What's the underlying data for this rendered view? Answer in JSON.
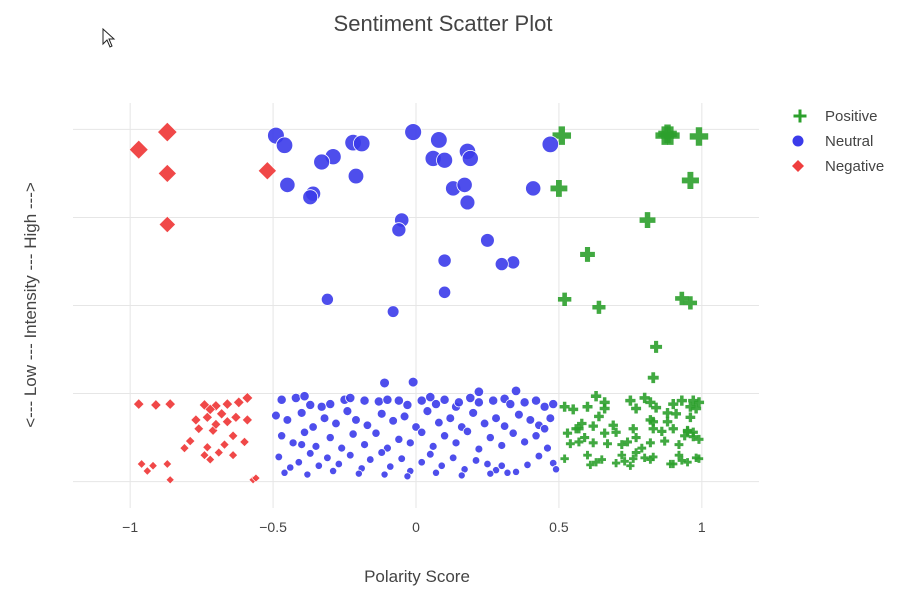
{
  "chart_data": {
    "type": "scatter",
    "title": "Sentiment Scatter Plot",
    "xlabel": "Polarity Score",
    "ylabel": "<--- Low --- Intensity --- High --->",
    "xlim": [
      -1.2,
      1.2
    ],
    "ylim": [
      -0.3,
      4.3
    ],
    "x_ticks": [
      -1,
      -0.5,
      0,
      0.5,
      1
    ],
    "x_tick_labels": [
      "−1",
      "−0.5",
      "0",
      "0.5",
      "1"
    ],
    "y_gridlines": [
      0,
      1,
      2,
      3,
      4
    ],
    "grid": true,
    "legend_position": "top-right",
    "series": [
      {
        "name": "Positive",
        "marker": "cross",
        "color": "#2ca02c",
        "points": [
          [
            0.51,
            3.93
          ],
          [
            0.88,
            3.95
          ],
          [
            0.89,
            3.93
          ],
          [
            0.87,
            3.93
          ],
          [
            0.99,
            3.92
          ],
          [
            0.96,
            3.42
          ],
          [
            0.5,
            3.33
          ],
          [
            0.81,
            2.97
          ],
          [
            0.6,
            2.58
          ],
          [
            0.52,
            2.07
          ],
          [
            0.64,
            1.98
          ],
          [
            0.93,
            2.08
          ],
          [
            0.96,
            2.03
          ],
          [
            0.84,
            1.53
          ],
          [
            0.83,
            1.18
          ],
          [
            0.52,
            0.85
          ],
          [
            0.55,
            0.82
          ],
          [
            0.53,
            0.55
          ],
          [
            0.56,
            0.6
          ],
          [
            0.58,
            0.66
          ],
          [
            0.52,
            0.26
          ],
          [
            0.63,
            0.97
          ],
          [
            0.6,
            0.85
          ],
          [
            0.66,
            0.83
          ],
          [
            0.66,
            0.9
          ],
          [
            0.64,
            0.74
          ],
          [
            0.75,
            0.92
          ],
          [
            0.77,
            0.83
          ],
          [
            0.8,
            0.95
          ],
          [
            0.82,
            0.9
          ],
          [
            0.82,
            0.7
          ],
          [
            0.83,
            0.68
          ],
          [
            0.88,
            0.78
          ],
          [
            0.9,
            0.88
          ],
          [
            0.93,
            0.92
          ],
          [
            0.97,
            0.92
          ],
          [
            0.99,
            0.9
          ],
          [
            0.98,
            0.83
          ],
          [
            0.96,
            0.85
          ],
          [
            0.88,
            0.68
          ],
          [
            0.86,
            0.57
          ],
          [
            0.83,
            0.6
          ],
          [
            0.9,
            0.6
          ],
          [
            0.95,
            0.57
          ],
          [
            0.97,
            0.56
          ],
          [
            0.97,
            0.51
          ],
          [
            0.94,
            0.52
          ],
          [
            0.77,
            0.5
          ],
          [
            0.76,
            0.6
          ],
          [
            0.7,
            0.56
          ],
          [
            0.66,
            0.55
          ],
          [
            0.62,
            0.63
          ],
          [
            0.59,
            0.5
          ],
          [
            0.57,
            0.45
          ],
          [
            0.54,
            0.43
          ],
          [
            0.6,
            0.3
          ],
          [
            0.61,
            0.19
          ],
          [
            0.63,
            0.22
          ],
          [
            0.65,
            0.25
          ],
          [
            0.72,
            0.3
          ],
          [
            0.7,
            0.21
          ],
          [
            0.73,
            0.23
          ],
          [
            0.76,
            0.26
          ],
          [
            0.77,
            0.33
          ],
          [
            0.79,
            0.38
          ],
          [
            0.8,
            0.27
          ],
          [
            0.82,
            0.25
          ],
          [
            0.83,
            0.28
          ],
          [
            0.9,
            0.2
          ],
          [
            0.93,
            0.24
          ],
          [
            0.95,
            0.22
          ],
          [
            0.98,
            0.27
          ],
          [
            0.99,
            0.26
          ],
          [
            0.92,
            0.3
          ],
          [
            0.75,
            0.18
          ],
          [
            0.67,
            0.43
          ],
          [
            0.72,
            0.42
          ],
          [
            0.74,
            0.45
          ],
          [
            0.62,
            0.44
          ],
          [
            0.57,
            0.6
          ],
          [
            0.69,
            0.64
          ],
          [
            0.82,
            0.44
          ],
          [
            0.87,
            0.46
          ],
          [
            0.92,
            0.42
          ],
          [
            0.99,
            0.48
          ],
          [
            0.95,
            0.58
          ],
          [
            0.84,
            0.84
          ],
          [
            0.91,
            0.77
          ],
          [
            0.96,
            0.73
          ],
          [
            0.89,
            0.2
          ]
        ]
      },
      {
        "name": "Neutral",
        "marker": "circle",
        "color": "#3b3bea",
        "points": [
          [
            -0.49,
            3.93
          ],
          [
            -0.46,
            3.82
          ],
          [
            -0.22,
            3.85
          ],
          [
            -0.19,
            3.84
          ],
          [
            -0.01,
            3.97
          ],
          [
            0.08,
            3.88
          ],
          [
            0.47,
            3.83
          ],
          [
            0.18,
            3.75
          ],
          [
            0.19,
            3.67
          ],
          [
            0.06,
            3.67
          ],
          [
            0.1,
            3.65
          ],
          [
            -0.29,
            3.69
          ],
          [
            -0.33,
            3.63
          ],
          [
            -0.21,
            3.47
          ],
          [
            -0.45,
            3.37
          ],
          [
            -0.36,
            3.27
          ],
          [
            -0.37,
            3.23
          ],
          [
            0.13,
            3.33
          ],
          [
            0.17,
            3.37
          ],
          [
            0.18,
            3.17
          ],
          [
            0.41,
            3.33
          ],
          [
            -0.05,
            2.97
          ],
          [
            -0.06,
            2.86
          ],
          [
            0.25,
            2.74
          ],
          [
            0.1,
            2.51
          ],
          [
            0.34,
            2.49
          ],
          [
            0.3,
            2.47
          ],
          [
            -0.31,
            2.07
          ],
          [
            0.1,
            2.15
          ],
          [
            -0.08,
            1.93
          ],
          [
            -0.11,
            1.12
          ],
          [
            0.35,
            1.03
          ],
          [
            -0.47,
            0.93
          ],
          [
            -0.42,
            0.95
          ],
          [
            -0.39,
            0.97
          ],
          [
            -0.37,
            0.87
          ],
          [
            -0.33,
            0.85
          ],
          [
            -0.3,
            0.88
          ],
          [
            -0.25,
            0.93
          ],
          [
            -0.23,
            0.95
          ],
          [
            -0.18,
            0.92
          ],
          [
            -0.13,
            0.91
          ],
          [
            -0.1,
            0.93
          ],
          [
            -0.06,
            0.92
          ],
          [
            -0.03,
            0.87
          ],
          [
            0.02,
            0.92
          ],
          [
            0.05,
            0.96
          ],
          [
            0.07,
            0.88
          ],
          [
            0.1,
            0.93
          ],
          [
            0.14,
            0.85
          ],
          [
            0.15,
            0.9
          ],
          [
            0.19,
            0.95
          ],
          [
            0.22,
            0.9
          ],
          [
            0.27,
            0.92
          ],
          [
            0.31,
            0.94
          ],
          [
            0.33,
            0.88
          ],
          [
            0.38,
            0.9
          ],
          [
            0.42,
            0.92
          ],
          [
            0.45,
            0.85
          ],
          [
            0.48,
            0.88
          ],
          [
            -0.49,
            0.75
          ],
          [
            -0.45,
            0.7
          ],
          [
            -0.4,
            0.78
          ],
          [
            -0.36,
            0.62
          ],
          [
            -0.32,
            0.72
          ],
          [
            -0.28,
            0.66
          ],
          [
            -0.24,
            0.8
          ],
          [
            -0.21,
            0.7
          ],
          [
            -0.17,
            0.64
          ],
          [
            -0.12,
            0.77
          ],
          [
            -0.08,
            0.69
          ],
          [
            -0.04,
            0.74
          ],
          [
            0.0,
            0.62
          ],
          [
            0.04,
            0.8
          ],
          [
            0.08,
            0.67
          ],
          [
            0.12,
            0.72
          ],
          [
            0.16,
            0.62
          ],
          [
            0.2,
            0.78
          ],
          [
            0.24,
            0.66
          ],
          [
            0.28,
            0.72
          ],
          [
            0.31,
            0.63
          ],
          [
            0.36,
            0.76
          ],
          [
            0.4,
            0.7
          ],
          [
            0.43,
            0.64
          ],
          [
            0.47,
            0.72
          ],
          [
            -0.47,
            0.52
          ],
          [
            -0.43,
            0.44
          ],
          [
            -0.39,
            0.56
          ],
          [
            -0.35,
            0.4
          ],
          [
            -0.3,
            0.5
          ],
          [
            -0.26,
            0.38
          ],
          [
            -0.22,
            0.54
          ],
          [
            -0.18,
            0.42
          ],
          [
            -0.14,
            0.55
          ],
          [
            -0.1,
            0.38
          ],
          [
            -0.06,
            0.48
          ],
          [
            -0.02,
            0.44
          ],
          [
            0.02,
            0.56
          ],
          [
            0.06,
            0.4
          ],
          [
            0.1,
            0.52
          ],
          [
            0.14,
            0.44
          ],
          [
            0.18,
            0.57
          ],
          [
            0.22,
            0.37
          ],
          [
            0.26,
            0.5
          ],
          [
            0.3,
            0.41
          ],
          [
            0.34,
            0.55
          ],
          [
            0.38,
            0.45
          ],
          [
            0.42,
            0.52
          ],
          [
            0.46,
            0.38
          ],
          [
            -0.48,
            0.28
          ],
          [
            -0.44,
            0.16
          ],
          [
            -0.41,
            0.22
          ],
          [
            -0.37,
            0.32
          ],
          [
            -0.34,
            0.18
          ],
          [
            -0.31,
            0.27
          ],
          [
            -0.27,
            0.2
          ],
          [
            -0.23,
            0.3
          ],
          [
            -0.19,
            0.15
          ],
          [
            -0.16,
            0.25
          ],
          [
            -0.12,
            0.33
          ],
          [
            -0.09,
            0.17
          ],
          [
            -0.05,
            0.26
          ],
          [
            -0.02,
            0.12
          ],
          [
            0.02,
            0.22
          ],
          [
            0.05,
            0.31
          ],
          [
            0.09,
            0.18
          ],
          [
            0.13,
            0.27
          ],
          [
            0.17,
            0.14
          ],
          [
            0.21,
            0.24
          ],
          [
            0.25,
            0.2
          ],
          [
            0.28,
            0.13
          ],
          [
            0.32,
            0.1
          ],
          [
            0.35,
            0.11
          ],
          [
            0.39,
            0.19
          ],
          [
            0.43,
            0.29
          ],
          [
            0.48,
            0.21
          ],
          [
            0.49,
            0.14
          ],
          [
            -0.46,
            0.1
          ],
          [
            -0.38,
            0.08
          ],
          [
            -0.29,
            0.12
          ],
          [
            -0.2,
            0.09
          ],
          [
            -0.11,
            0.08
          ],
          [
            -0.03,
            0.06
          ],
          [
            0.07,
            0.1
          ],
          [
            0.16,
            0.07
          ],
          [
            0.26,
            0.09
          ],
          [
            0.3,
            0.18
          ],
          [
            -0.01,
            1.13
          ],
          [
            0.22,
            1.02
          ],
          [
            -0.4,
            0.42
          ],
          [
            0.45,
            0.6
          ]
        ]
      },
      {
        "name": "Negative",
        "marker": "diamond",
        "color": "#ef3e3e",
        "points": [
          [
            -0.87,
            3.97
          ],
          [
            -0.97,
            3.77
          ],
          [
            -0.87,
            3.5
          ],
          [
            -0.52,
            3.53
          ],
          [
            -0.87,
            2.92
          ],
          [
            -0.97,
            0.88
          ],
          [
            -0.91,
            0.87
          ],
          [
            -0.86,
            0.88
          ],
          [
            -0.74,
            0.87
          ],
          [
            -0.7,
            0.86
          ],
          [
            -0.66,
            0.88
          ],
          [
            -0.62,
            0.9
          ],
          [
            -0.59,
            0.95
          ],
          [
            -0.72,
            0.82
          ],
          [
            -0.68,
            0.77
          ],
          [
            -0.63,
            0.73
          ],
          [
            -0.59,
            0.7
          ],
          [
            -0.73,
            0.73
          ],
          [
            -0.77,
            0.7
          ],
          [
            -0.76,
            0.6
          ],
          [
            -0.71,
            0.58
          ],
          [
            -0.64,
            0.52
          ],
          [
            -0.6,
            0.45
          ],
          [
            -0.67,
            0.42
          ],
          [
            -0.73,
            0.39
          ],
          [
            -0.79,
            0.46
          ],
          [
            -0.74,
            0.3
          ],
          [
            -0.69,
            0.33
          ],
          [
            -0.72,
            0.25
          ],
          [
            -0.96,
            0.2
          ],
          [
            -0.92,
            0.18
          ],
          [
            -0.87,
            0.2
          ],
          [
            -0.94,
            0.12
          ],
          [
            -0.86,
            0.02
          ],
          [
            -0.57,
            0.02
          ],
          [
            -0.56,
            0.04
          ],
          [
            -0.64,
            0.3
          ],
          [
            -0.81,
            0.38
          ],
          [
            -0.7,
            0.65
          ],
          [
            -0.66,
            0.68
          ]
        ]
      }
    ]
  }
}
